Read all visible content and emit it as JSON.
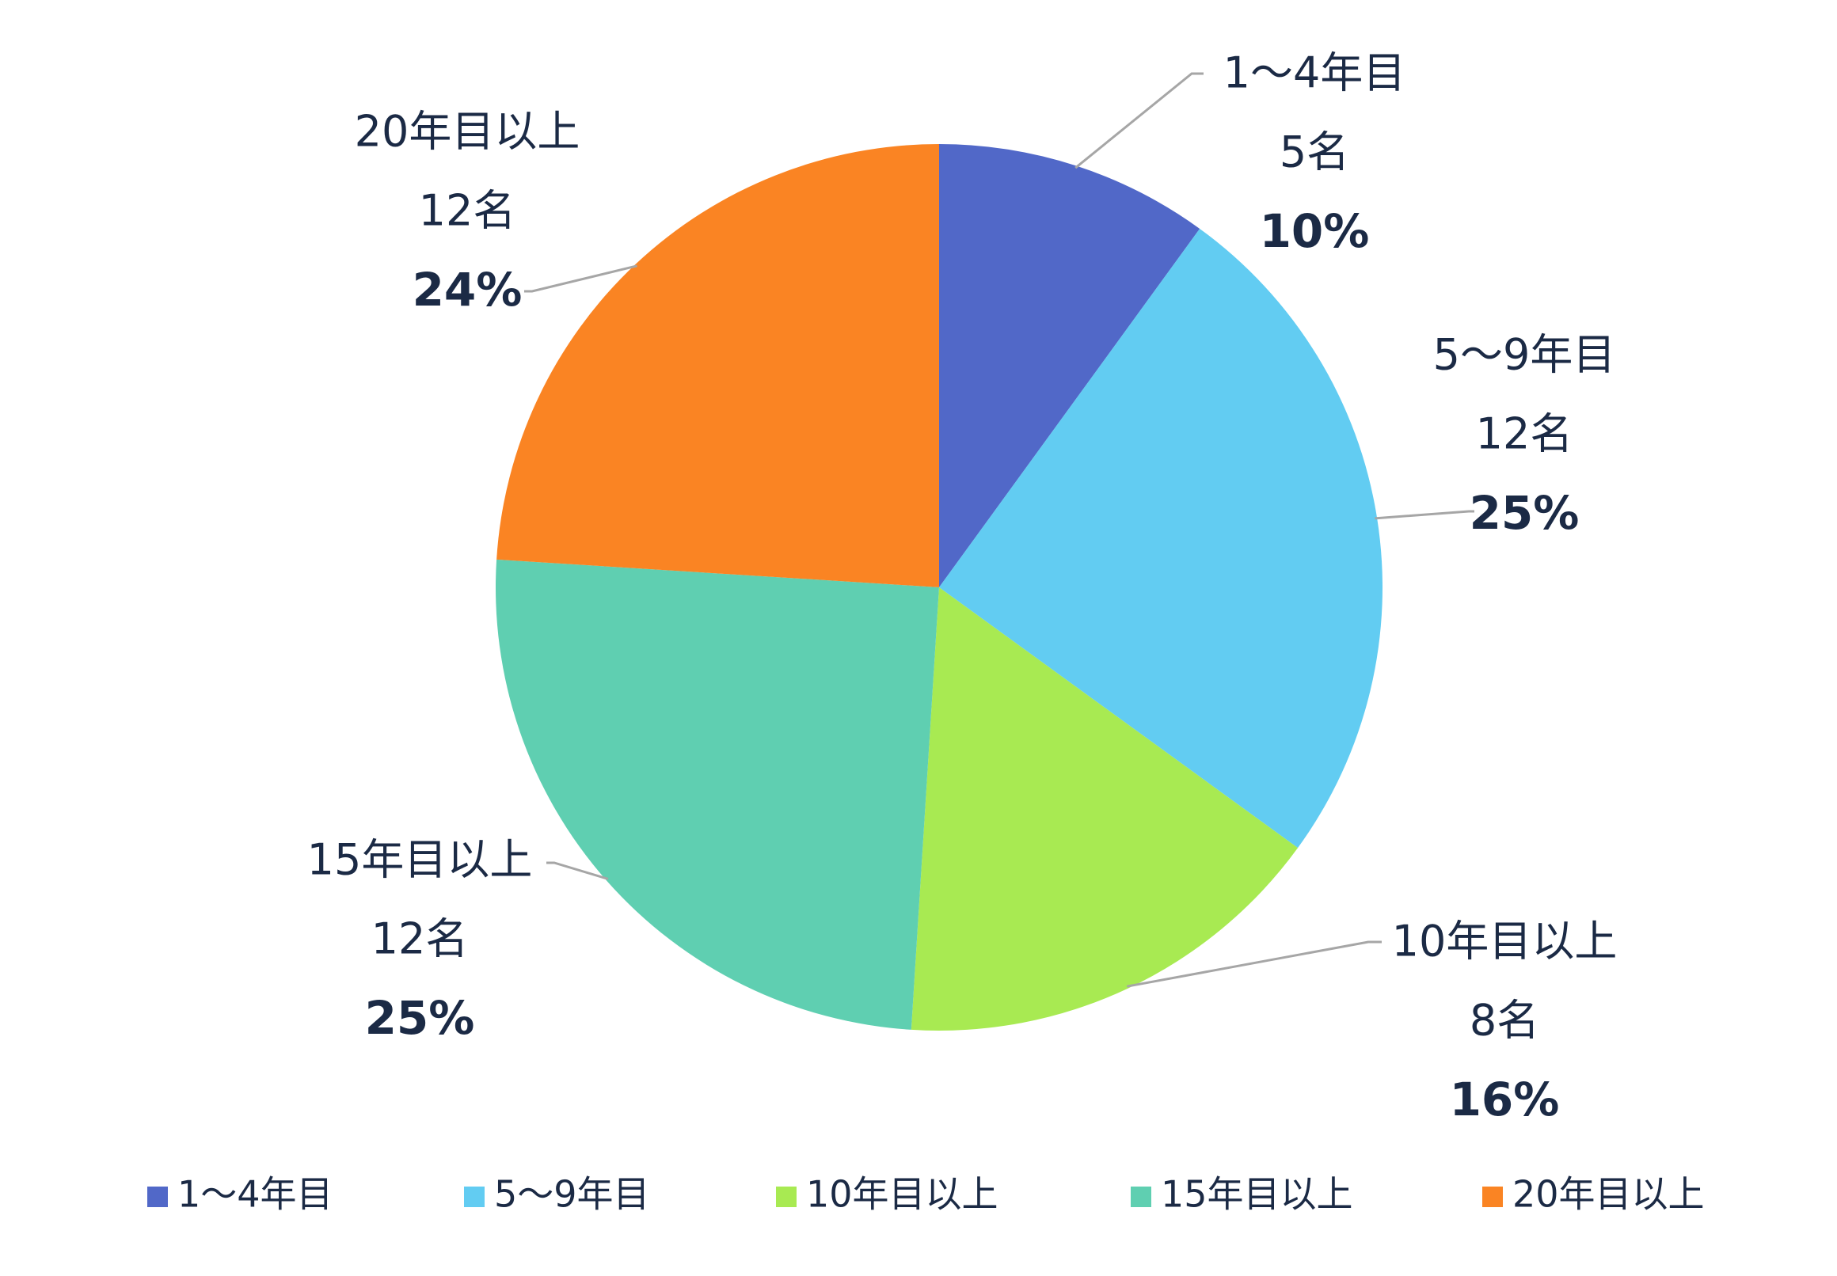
{
  "chart_data": {
    "type": "pie",
    "title": "",
    "categories": [
      "1～4年目",
      "5～9年目",
      "10年目以上",
      "15年目以上",
      "20年目以上"
    ],
    "counts": [
      "5名",
      "12名",
      "8名",
      "12名",
      "12名"
    ],
    "values": [
      10,
      25,
      16,
      25,
      24
    ],
    "value_labels": [
      "10%",
      "25%",
      "16%",
      "25%",
      "24%"
    ],
    "start_angle": "12 o'clock",
    "direction": "clockwise",
    "colors": [
      "#5168c8",
      "#62ccf2",
      "#a8ea52",
      "#5fcfb1",
      "#fa8423"
    ],
    "legend": {
      "position": "bottom",
      "items": [
        "1～4年目",
        "5～9年目",
        "10年目以上",
        "15年目以上",
        "20年目以上"
      ]
    }
  }
}
